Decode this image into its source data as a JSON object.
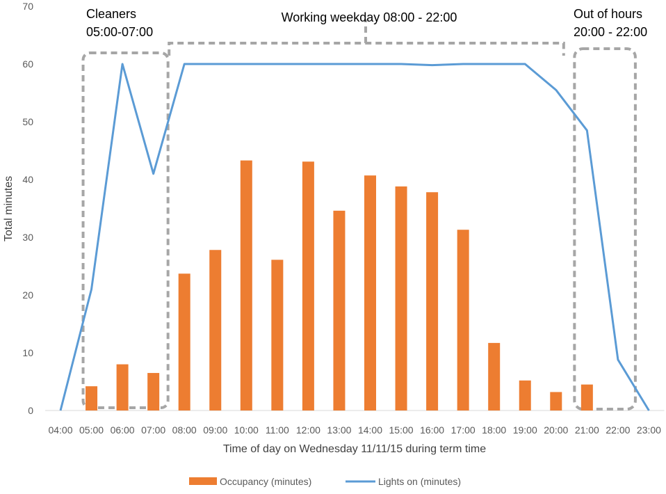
{
  "chart_data": {
    "type": "bar",
    "categories": [
      "04:00",
      "05:00",
      "06:00",
      "07:00",
      "08:00",
      "09:00",
      "10:00",
      "11:00",
      "12:00",
      "13:00",
      "14:00",
      "15:00",
      "16:00",
      "17:00",
      "18:00",
      "19:00",
      "20:00",
      "21:00",
      "22:00",
      "23:00"
    ],
    "series": [
      {
        "name": "Occupancy (minutes)",
        "type": "bar",
        "color": "#ED7D31",
        "values": [
          null,
          4.2,
          8.0,
          6.5,
          23.7,
          27.8,
          43.3,
          26.1,
          43.1,
          34.6,
          40.7,
          38.8,
          37.8,
          31.3,
          11.7,
          5.2,
          3.2,
          4.5,
          null,
          null
        ]
      },
      {
        "name": "Lights on (minutes)",
        "type": "line",
        "color": "#5B9BD5",
        "values": [
          0,
          21,
          60,
          41,
          60,
          60,
          60,
          60,
          60,
          60,
          60,
          60,
          59.8,
          60,
          60,
          60,
          55.5,
          48.5,
          8.8,
          0
        ]
      }
    ],
    "xlabel": "Time of day on Wednesday 11/11/15 during term time",
    "ylabel": "Total minutes",
    "ylim": [
      0,
      70
    ],
    "yticks": [
      0,
      10,
      20,
      30,
      40,
      50,
      60,
      70
    ],
    "grid": false,
    "legend": "bottom",
    "annotations": [
      {
        "lines": [
          "Cleaners",
          "05:00-07:00"
        ],
        "from": "05:00",
        "to": "07:00"
      },
      {
        "lines": [
          "Working weekday 08:00 - 22:00"
        ],
        "from": "08:00",
        "to": "20:00"
      },
      {
        "lines": [
          "Out of hours",
          "20:00 - 22:00"
        ],
        "from": "21:00",
        "to": "22:00"
      }
    ]
  }
}
